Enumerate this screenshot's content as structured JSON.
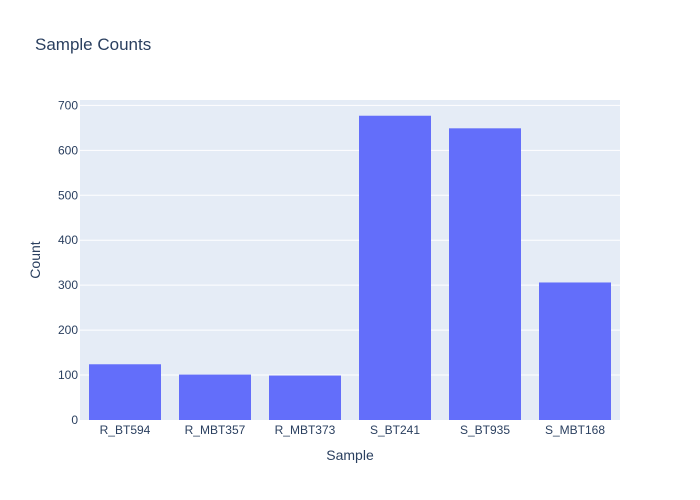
{
  "chart_data": {
    "type": "bar",
    "title": "Sample Counts",
    "xlabel": "Sample",
    "ylabel": "Count",
    "categories": [
      "R_BT594",
      "R_MBT357",
      "R_MBT373",
      "S_BT241",
      "S_BT935",
      "S_MBT168"
    ],
    "values": [
      124,
      101,
      99,
      677,
      649,
      306
    ],
    "ylim": [
      0,
      712
    ],
    "yticks": [
      0,
      100,
      200,
      300,
      400,
      500,
      600,
      700
    ],
    "grid": true,
    "legend": "none"
  },
  "colors": {
    "bar": "#636efa",
    "plot_background": "#e5ecf6",
    "gridline": "#ffffff",
    "text": "#2a3f5f"
  }
}
